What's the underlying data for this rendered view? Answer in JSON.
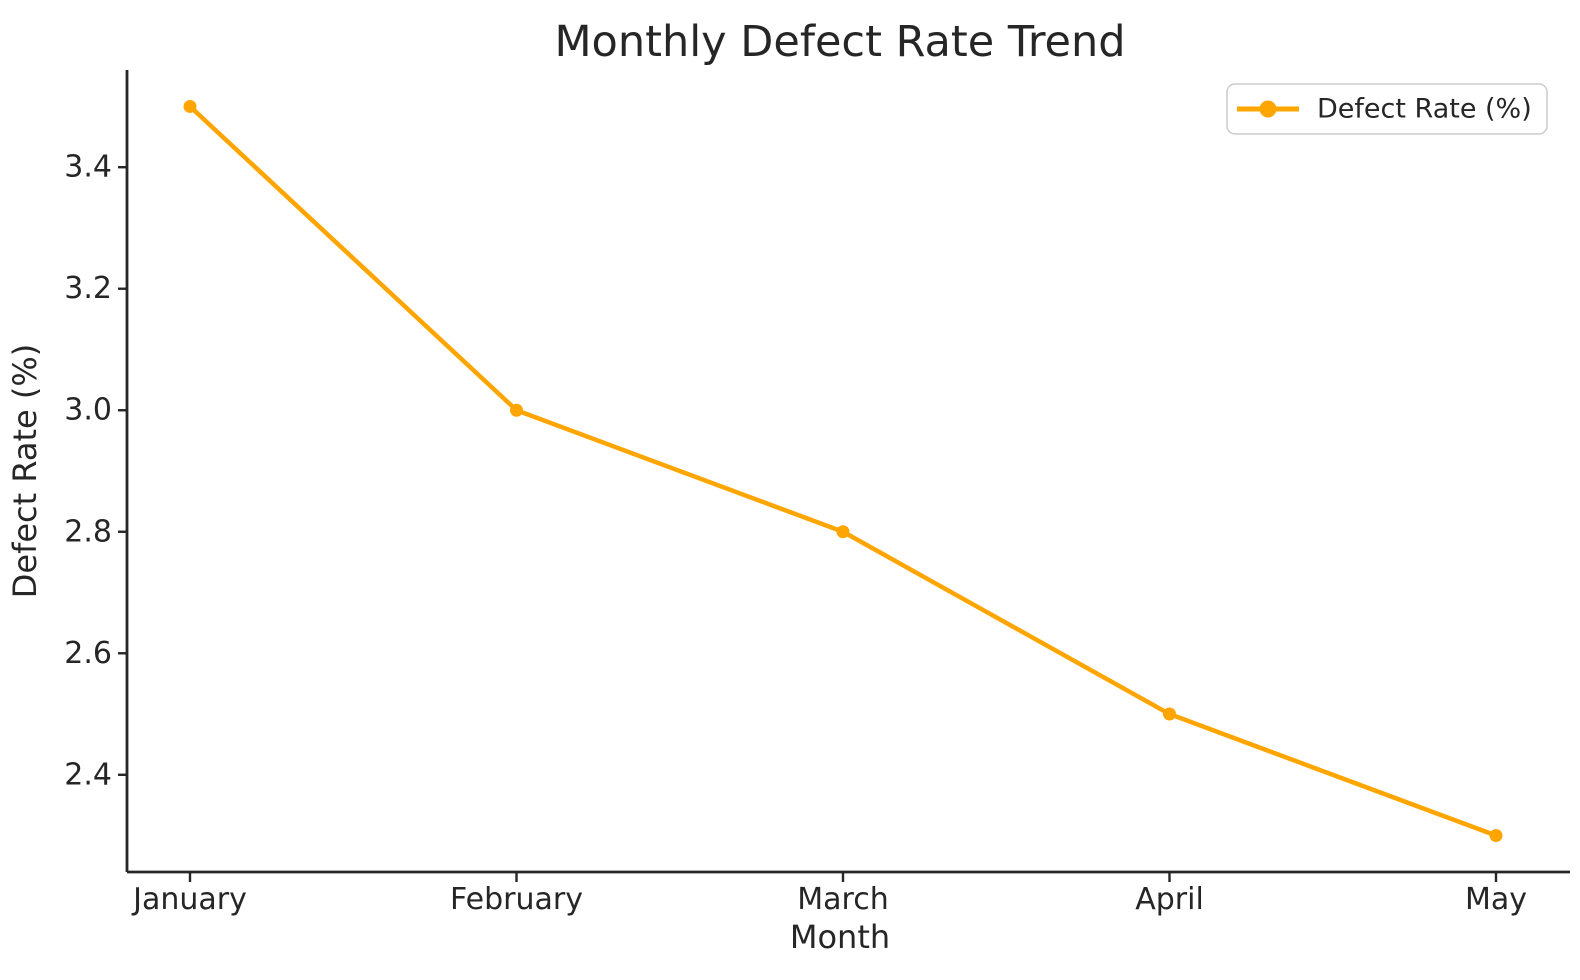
{
  "chart_data": {
    "type": "line",
    "title": "Monthly Defect Rate Trend",
    "xlabel": "Month",
    "ylabel": "Defect Rate (%)",
    "categories": [
      "January",
      "February",
      "March",
      "April",
      "May"
    ],
    "series": [
      {
        "name": "Defect Rate (%)",
        "values": [
          3.5,
          3.0,
          2.8,
          2.5,
          2.3
        ],
        "color": "#FFA500",
        "marker": "circle"
      }
    ],
    "ylim": [
      2.24,
      3.56
    ],
    "yticks": [
      2.4,
      2.6,
      2.8,
      3.0,
      3.2,
      3.4
    ],
    "ytick_labels": [
      "2.4",
      "2.6",
      "2.8",
      "3.0",
      "3.2",
      "3.4"
    ],
    "grid": false,
    "legend": {
      "label": "Defect Rate (%)",
      "position": "upper right"
    },
    "colors": {
      "line": "#FFA500",
      "text": "#262626",
      "axis": "#262626",
      "legend_border": "#cccccc",
      "background": "#ffffff"
    }
  }
}
